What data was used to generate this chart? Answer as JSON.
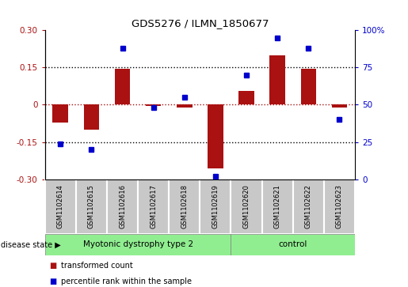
{
  "title": "GDS5276 / ILMN_1850677",
  "samples": [
    "GSM1102614",
    "GSM1102615",
    "GSM1102616",
    "GSM1102617",
    "GSM1102618",
    "GSM1102619",
    "GSM1102620",
    "GSM1102621",
    "GSM1102622",
    "GSM1102623"
  ],
  "transformed_count": [
    -0.07,
    -0.1,
    0.145,
    -0.005,
    -0.01,
    -0.255,
    0.055,
    0.2,
    0.145,
    -0.01
  ],
  "percentile_rank": [
    24,
    20,
    88,
    48,
    55,
    2,
    70,
    95,
    88,
    40
  ],
  "red_color": "#AA1111",
  "blue_color": "#0000CC",
  "ylim_left": [
    -0.3,
    0.3
  ],
  "ylim_right": [
    0,
    100
  ],
  "yticks_left": [
    -0.3,
    -0.15,
    0,
    0.15,
    0.3
  ],
  "yticks_right": [
    0,
    25,
    50,
    75,
    100
  ],
  "hlines_black": [
    0.15,
    -0.15
  ],
  "hline_red": 0.0,
  "disease_groups": [
    {
      "label": "Myotonic dystrophy type 2",
      "samples_count": 6,
      "color": "#90EE90"
    },
    {
      "label": "control",
      "samples_count": 4,
      "color": "#90EE90"
    }
  ],
  "disease_state_label": "disease state",
  "legend_labels": [
    "transformed count",
    "percentile rank within the sample"
  ],
  "n_myotonic": 6,
  "n_control": 4,
  "bar_width": 0.5,
  "marker_size": 5,
  "sample_box_color": "#C8C8C8",
  "sample_text_color": "#000000",
  "right_axis_top_label": "100%"
}
